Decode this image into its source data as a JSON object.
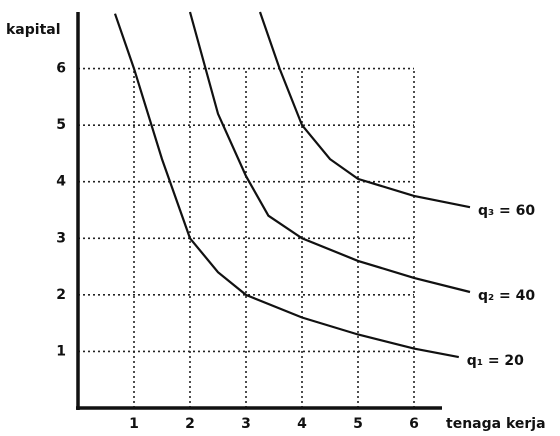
{
  "chart_data": {
    "type": "line",
    "y_label": "kapital",
    "x_label": "tenaga kerja",
    "xlim": [
      0,
      6.5
    ],
    "ylim": [
      0,
      7
    ],
    "xticks": [
      1,
      2,
      3,
      4,
      5,
      6
    ],
    "yticks": [
      1,
      2,
      3,
      4,
      5,
      6
    ],
    "grid": true,
    "series": [
      {
        "name": "q₁ = 20",
        "color": "#111111",
        "x": [
          0.66,
          1,
          1.5,
          2,
          2.5,
          3,
          4,
          5,
          6,
          6.8
        ],
        "values": [
          6.97,
          6,
          4.4,
          3,
          2.4,
          2,
          1.6,
          1.3,
          1.05,
          0.9
        ]
      },
      {
        "name": "q₂ = 40",
        "color": "#111111",
        "x": [
          2,
          2.5,
          3,
          3.4,
          4,
          5,
          6,
          7
        ],
        "values": [
          7,
          5.2,
          4.1,
          3.4,
          3,
          2.6,
          2.3,
          2.05
        ]
      },
      {
        "name": "q₃ = 60",
        "color": "#111111",
        "x": [
          3.25,
          3.6,
          4,
          4.5,
          5,
          6,
          7
        ],
        "values": [
          7,
          6,
          5,
          4.4,
          4.05,
          3.75,
          3.55
        ]
      }
    ]
  }
}
